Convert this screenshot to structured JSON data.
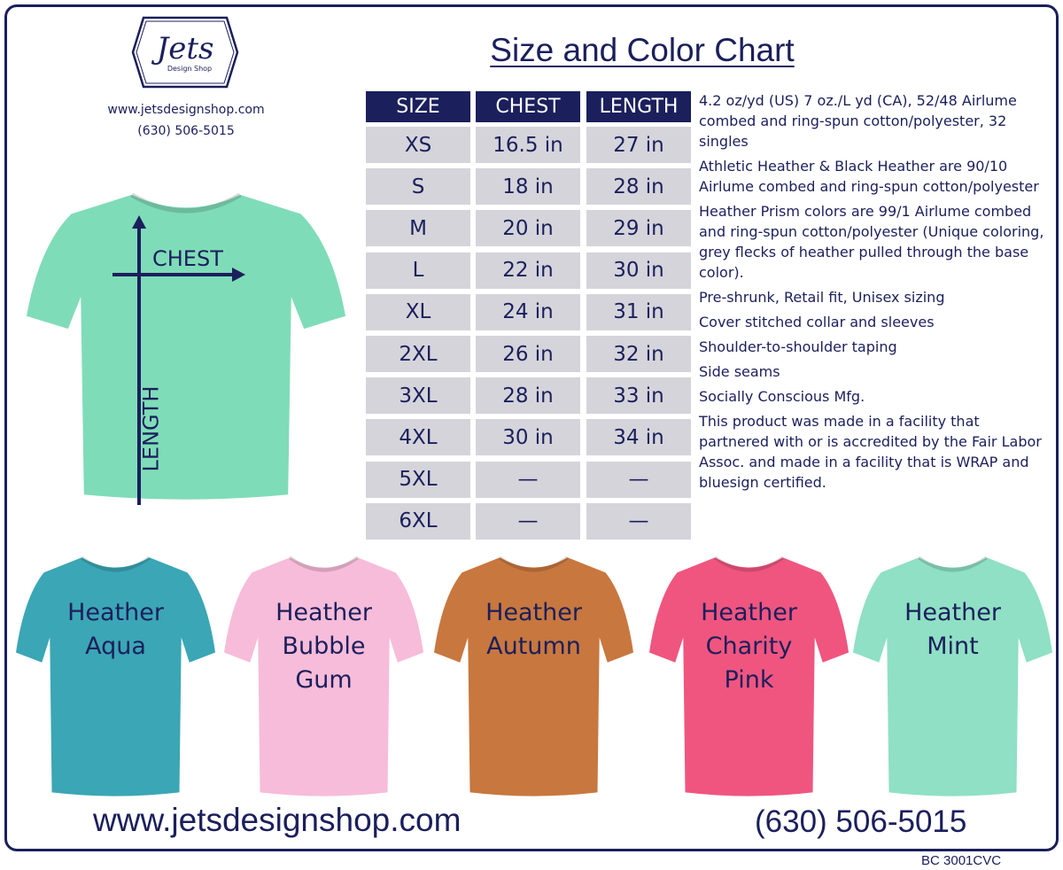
{
  "brand": {
    "logo_text": "Jets",
    "logo_sub": "Design Shop",
    "url": "www.jetsdesignshop.com",
    "phone": "(630) 506-5015"
  },
  "title": "Size and Color Chart",
  "table": {
    "headers": [
      "SIZE",
      "CHEST",
      "LENGTH"
    ],
    "rows": [
      [
        "XS",
        "16.5 in",
        "27 in"
      ],
      [
        "S",
        "18 in",
        "28 in"
      ],
      [
        "M",
        "20 in",
        "29 in"
      ],
      [
        "L",
        "22 in",
        "30 in"
      ],
      [
        "XL",
        "24 in",
        "31 in"
      ],
      [
        "2XL",
        "26 in",
        "32 in"
      ],
      [
        "3XL",
        "28 in",
        "33 in"
      ],
      [
        "4XL",
        "30 in",
        "34 in"
      ],
      [
        "5XL",
        "—",
        "—"
      ],
      [
        "6XL",
        "—",
        "—"
      ]
    ]
  },
  "specs": [
    "4.2 oz/yd (US) 7 oz./L yd (CA), 52/48 Airlume combed and ring-spun cotton/polyester, 32 singles",
    "Athletic Heather & Black Heather are 90/10 Airlume combed and ring-spun cotton/polyester",
    "Heather Prism colors are 99/1 Airlume combed and ring-spun cotton/polyester (Unique coloring, grey flecks of heather pulled through the base color).",
    "Pre-shrunk, Retail fit, Unisex sizing",
    "Cover stitched collar and sleeves",
    "Shoulder-to-shoulder taping",
    "Side seams",
    "Socially Conscious Mfg.",
    "This product was made in a facility that partnered with or is accredited by the Fair Labor Assoc. and made in a facility that is WRAP and bluesign certified."
  ],
  "diagram": {
    "chest_label": "CHEST",
    "length_label": "LENGTH",
    "shirt_color": "#7fdcb8"
  },
  "colors": [
    {
      "name": "Heather Aqua",
      "lines": [
        "Heather",
        "Aqua"
      ],
      "hex": "#3ba6b5"
    },
    {
      "name": "Heather Bubble Gum",
      "lines": [
        "Heather",
        "Bubble",
        "Gum"
      ],
      "hex": "#f7bcd9"
    },
    {
      "name": "Heather Autumn",
      "lines": [
        "Heather",
        "Autumn"
      ],
      "hex": "#c8773e"
    },
    {
      "name": "Heather Charity Pink",
      "lines": [
        "Heather",
        "Charity",
        "Pink"
      ],
      "hex": "#f0557f"
    },
    {
      "name": "Heather Mint",
      "lines": [
        "Heather",
        "Mint"
      ],
      "hex": "#8fe0c4"
    }
  ],
  "footer": {
    "url": "www.jetsdesignshop.com",
    "phone": "(630) 506-5015",
    "code": "BC 3001CVC"
  },
  "accent": "#1b1f5c"
}
